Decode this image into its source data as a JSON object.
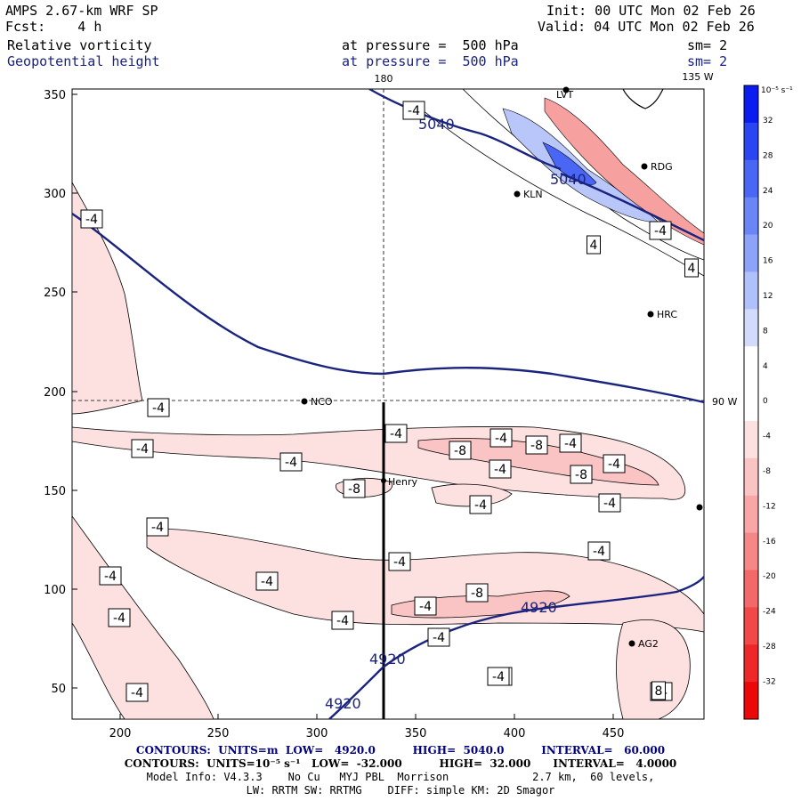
{
  "header": {
    "left_line1": "AMPS 2.67-km WRF SP",
    "left_line2": "Fcst:    4 h",
    "right_line1": "Init: 00 UTC Mon 02 Feb 26",
    "right_line2": "Valid: 04 UTC Mon 02 Feb 26",
    "field1_name": "Relative vorticity",
    "field1_level": "at pressure =  500 hPa",
    "field1_sm": "sm= 2",
    "field2_name": "Geopotential height",
    "field2_level": "at pressure =  500 hPa",
    "field2_sm": "sm= 2"
  },
  "map": {
    "x_ticks": [
      "200",
      "250",
      "300",
      "350",
      "400",
      "450"
    ],
    "y_ticks": [
      "350",
      "300",
      "250",
      "200",
      "150",
      "100",
      "50"
    ],
    "longitude_labels": {
      "top_180": "180",
      "top_135w": "135 W",
      "right_90w": "90 W"
    },
    "stations": [
      "LVT",
      "RDG",
      "KLN",
      "HRC",
      "NCO",
      "Henry",
      "AG2"
    ],
    "height_contour_labels": [
      "5040",
      "5040",
      "4920",
      "4920",
      "4920"
    ],
    "vorticity_labels": [
      "-4",
      "-4",
      "-4",
      "-4",
      "-4",
      "-8",
      "-4",
      "-8",
      "-4",
      "-4",
      "-8",
      "-4",
      "-8",
      "-4",
      "-4",
      "-4",
      "-4",
      "-4",
      "-4",
      "-4",
      "-8",
      "-4",
      "-4",
      "-4",
      "-4",
      "-4",
      "-4",
      "-4",
      "-4",
      "-4",
      "4",
      "4",
      "8",
      "-4"
    ]
  },
  "colorbar": {
    "unit_label": "10⁻⁵ s⁻¹",
    "ticks": [
      "32",
      "28",
      "24",
      "20",
      "16",
      "12",
      "8",
      "4",
      "0",
      "-4",
      "-8",
      "-12",
      "-16",
      "-20",
      "-24",
      "-28",
      "-32"
    ],
    "colors": [
      "#0a1cf0",
      "#2a45f2",
      "#4a66f4",
      "#6b85f6",
      "#8da3f8",
      "#afc0fa",
      "#d2dbfc",
      "#ffffff",
      "#ffffff",
      "#fde0e0",
      "#fbc4c4",
      "#f8a6a6",
      "#f68787",
      "#f36868",
      "#f14848",
      "#ee2828",
      "#ec0808"
    ]
  },
  "footer": {
    "line1": "CONTOURS:  UNITS=m  LOW=   4920.0          HIGH=  5040.0          INTERVAL=   60.000",
    "line2": "CONTOURS:  UNITS=10⁻⁵ s⁻¹   LOW=  -32.000          HIGH=  32.000      INTERVAL=   4.0000",
    "line3": "Model Info: V4.3.3    No Cu   MYJ PBL  Morrison             2.7 km,  60 levels,",
    "line4": "LW: RRTM SW: RRTMG    DIFF: simple KM: 2D Smagor"
  }
}
